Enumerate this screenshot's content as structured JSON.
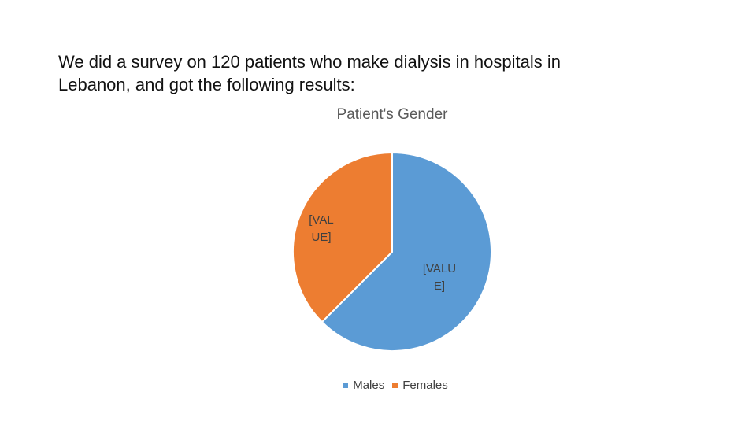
{
  "slide": {
    "text_lines": [
      "We did a survey on 120 patients who make dialysis in hospitals in",
      "Lebanon, and got the following results:"
    ]
  },
  "chart_data": {
    "type": "pie",
    "title": "Patient's Gender",
    "categories": [
      "Males",
      "Females"
    ],
    "values": [
      62.5,
      37.5
    ],
    "colors": [
      "#5B9BD5",
      "#ED7D31"
    ],
    "data_labels": [
      [
        "[VALU",
        "E]"
      ],
      [
        "[VAL",
        "UE]"
      ]
    ],
    "legend_position": "bottom",
    "start_angle": "12 o'clock, clockwise"
  }
}
